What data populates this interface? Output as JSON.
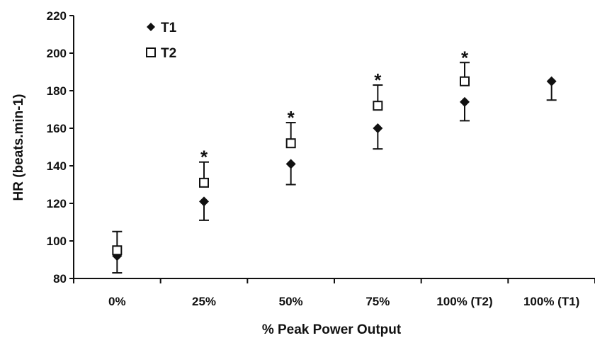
{
  "chart_data": {
    "type": "scatter",
    "title": "",
    "xlabel": "% Peak Power Output",
    "ylabel": "HR (beats.min-1)",
    "ylim": [
      80,
      220
    ],
    "yticks": [
      "80",
      "100",
      "120",
      "140",
      "160",
      "180",
      "200",
      "220"
    ],
    "categories": [
      "0%",
      "25%",
      "50%",
      "75%",
      "100% (T2)",
      "100% (T1)"
    ],
    "grid": false,
    "legend_position": "top-left",
    "series": [
      {
        "name": "T1",
        "marker": "filled-diamond",
        "color": "#111111",
        "values": [
          92,
          121,
          141,
          160,
          174,
          185
        ],
        "error_low": [
          83,
          111,
          130,
          149,
          164,
          175
        ]
      },
      {
        "name": "T2",
        "marker": "open-square",
        "color": "#111111",
        "values": [
          95,
          131,
          152,
          172,
          185,
          null
        ],
        "error_high": [
          105,
          142,
          163,
          183,
          195,
          null
        ]
      }
    ],
    "annotations": [
      {
        "category": "25%",
        "text": "*"
      },
      {
        "category": "50%",
        "text": "*"
      },
      {
        "category": "75%",
        "text": "*"
      },
      {
        "category": "100% (T2)",
        "text": "*"
      }
    ]
  }
}
